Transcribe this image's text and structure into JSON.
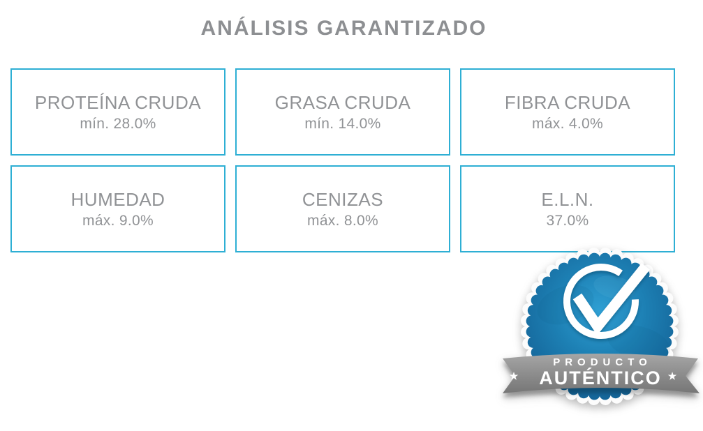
{
  "title": "ANÁLISIS GARANTIZADO",
  "analysis": {
    "items": [
      {
        "name": "PROTEÍNA CRUDA",
        "value": "mín. 28.0%"
      },
      {
        "name": "GRASA CRUDA",
        "value": "mín. 14.0%"
      },
      {
        "name": "FIBRA CRUDA",
        "value": "máx. 4.0%"
      },
      {
        "name": "HUMEDAD",
        "value": "máx. 9.0%"
      },
      {
        "name": "CENIZAS",
        "value": "máx. 8.0%"
      },
      {
        "name": "E.L.N.",
        "value": "37.0%"
      }
    ]
  },
  "badge": {
    "top_text": "PRODUCTO",
    "bottom_text": "AUTÉNTICO",
    "star": "★"
  },
  "colors": {
    "box_border": "#2EAFD4",
    "heading_text": "#8D8F92",
    "item_text": "#909295",
    "seal_blue_light": "#2FA0D4",
    "seal_blue": "#1D80B4",
    "seal_blue_dark": "#115C8C",
    "ribbon_gray_light": "#A6A6A6",
    "ribbon_gray_dark": "#767676",
    "badge_text": "#FFFFFF"
  }
}
